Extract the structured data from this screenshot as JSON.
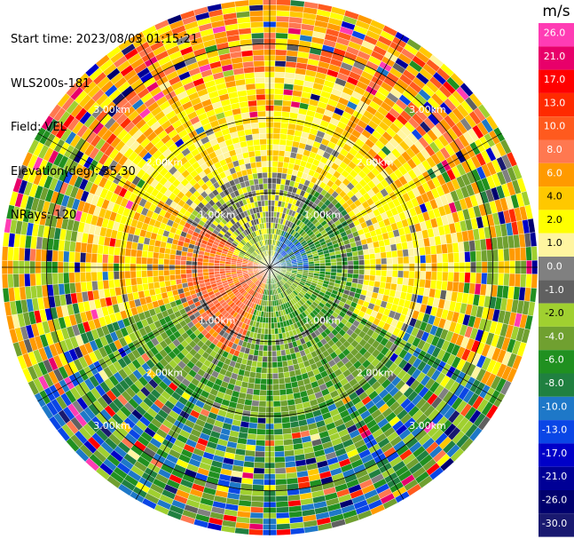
{
  "header": {
    "start_time": "Start time: 2023/08/03 01:15:21",
    "instrument": "WLS200s-181",
    "field": "Field: VEL",
    "elevation": "Elevation(deg): 35.30",
    "nrays": "NRays: 120"
  },
  "chart_data": {
    "type": "heatmap",
    "subtype": "radar-ppi",
    "field": "VEL",
    "unit": "m/s",
    "nrays": 120,
    "range_ring_labels": [
      "1.00km",
      "2.00km",
      "3.00km"
    ],
    "range_ring_km": [
      1,
      2,
      3
    ],
    "max_range_km": 3.6,
    "colorbar": {
      "title": "m/s",
      "ticks": [
        "26.0",
        "21.0",
        "17.0",
        "13.0",
        "10.0",
        "8.0",
        "6.0",
        "4.0",
        "2.0",
        "1.0",
        "0.0",
        "-1.0",
        "-2.0",
        "-4.0",
        "-6.0",
        "-8.0",
        "-10.0",
        "-13.0",
        "-17.0",
        "-21.0",
        "-26.0",
        "-30.0"
      ],
      "colors": [
        "#ff3cb4",
        "#e8006a",
        "#ff0000",
        "#ff2a00",
        "#ff5a1e",
        "#ff7850",
        "#ff9a00",
        "#ffc800",
        "#ffff00",
        "#fff5a0",
        "#808080",
        "#606060",
        "#a0d030",
        "#70a030",
        "#209020",
        "#208040",
        "#1e78c8",
        "#0a46e6",
        "#0000c8",
        "#000096",
        "#00006e",
        "#191970"
      ]
    },
    "pattern_description_omitted": false,
    "pattern": {
      "near_positive_sector_deg": [
        200,
        280
      ],
      "near_negative_sector_deg": [
        20,
        90
      ],
      "outer_positive_sector_deg": [
        270,
        60
      ],
      "outer_negative_sector_deg": [
        110,
        250
      ]
    }
  }
}
